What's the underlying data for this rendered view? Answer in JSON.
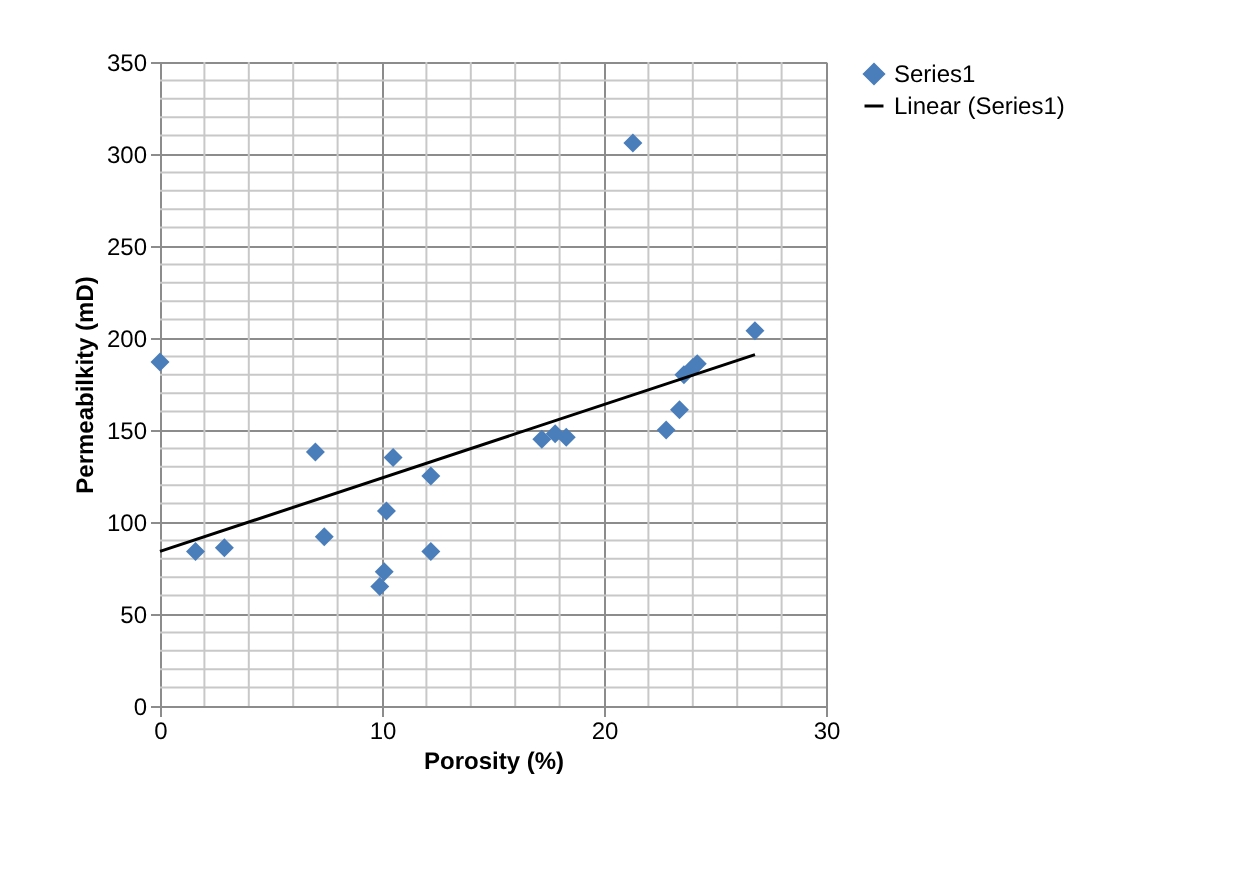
{
  "chart_data": {
    "type": "scatter",
    "xlabel": "Porosity (%)",
    "ylabel": "Permeabilkity (mD)",
    "xlim": [
      0,
      30
    ],
    "ylim": [
      0,
      350
    ],
    "xticks": [
      0,
      10,
      20,
      30
    ],
    "yticks": [
      0,
      50,
      100,
      150,
      200,
      250,
      300,
      350
    ],
    "grid": true,
    "legend": "right",
    "marker": "diamond",
    "series": [
      {
        "name": "Series1",
        "color": "#4a7ebb",
        "x": [
          0,
          1.6,
          2.9,
          7.0,
          7.4,
          9.9,
          10.1,
          10.2,
          10.5,
          12.2,
          12.2,
          17.2,
          17.8,
          18.3,
          21.3,
          22.8,
          23.4,
          23.6,
          24.0,
          24.2,
          26.8
        ],
        "values": [
          187,
          84,
          86,
          138,
          92,
          65,
          73,
          106,
          135,
          125,
          84,
          145,
          148,
          146,
          306,
          150,
          161,
          180,
          184,
          186,
          204
        ]
      },
      {
        "name": "Linear (Series1)",
        "type": "line",
        "marker": "none",
        "color": "#000000",
        "x": [
          0,
          26.8
        ],
        "values": [
          84,
          191
        ]
      }
    ]
  }
}
